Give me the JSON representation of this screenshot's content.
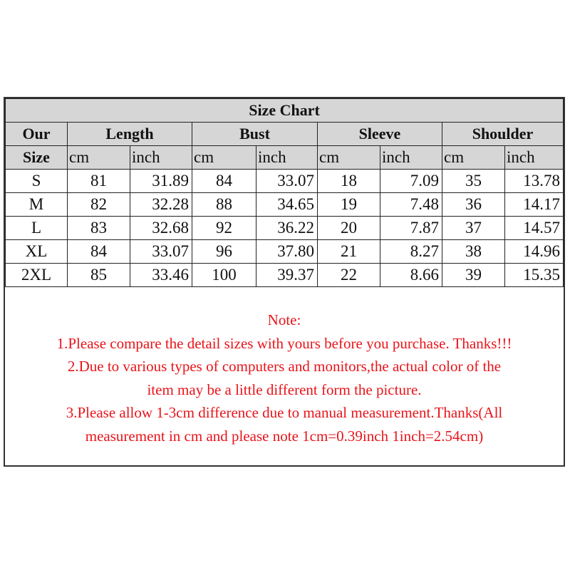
{
  "title": "Size Chart",
  "size_header": [
    "Our",
    "Size"
  ],
  "groups": [
    "Length",
    "Bust",
    "Sleeve",
    "Shoulder"
  ],
  "units": [
    "cm",
    "inch"
  ],
  "rows": [
    [
      "S",
      "81",
      "31.89",
      "84",
      "33.07",
      "18",
      "7.09",
      "35",
      "13.78"
    ],
    [
      "M",
      "82",
      "32.28",
      "88",
      "34.65",
      "19",
      "7.48",
      "36",
      "14.17"
    ],
    [
      "L",
      "83",
      "32.68",
      "92",
      "36.22",
      "20",
      "7.87",
      "37",
      "14.57"
    ],
    [
      "XL",
      "84",
      "33.07",
      "96",
      "37.80",
      "21",
      "8.27",
      "38",
      "14.96"
    ],
    [
      "2XL",
      "85",
      "33.46",
      "100",
      "39.37",
      "22",
      "8.66",
      "39",
      "15.35"
    ]
  ],
  "note": {
    "heading": "Note:",
    "lines": [
      "1.Please compare the detail sizes with yours before you purchase. Thanks!!!",
      "2.Due to various types of computers and monitors,the actual color of the",
      "item may be a little different form the picture.",
      "3.Please allow 1-3cm difference due to manual measurement.Thanks(All",
      "measurement in cm and please note 1cm=0.39inch 1inch=2.54cm)"
    ]
  },
  "colors": {
    "header_bg": "#d6d6d6",
    "note_text": "#e8141a"
  }
}
